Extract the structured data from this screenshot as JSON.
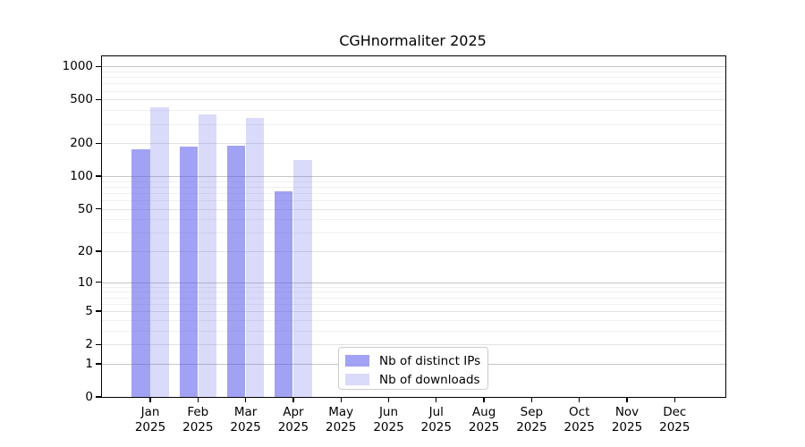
{
  "figure": {
    "background": "#ffffff"
  },
  "chart_data": {
    "type": "bar",
    "title": "CGHnormaliter 2025",
    "categories": [
      "Jan",
      "Feb",
      "Mar",
      "Apr",
      "May",
      "Jun",
      "Jul",
      "Aug",
      "Sep",
      "Oct",
      "Nov",
      "Dec"
    ],
    "x_tick_year": "2025",
    "series": [
      {
        "name": "Nb of distinct IPs",
        "color": "rgba(85,85,235,0.55)",
        "values": [
          176,
          187,
          191,
          73,
          null,
          null,
          null,
          null,
          null,
          null,
          null,
          null
        ]
      },
      {
        "name": "Nb of downloads",
        "color": "rgba(85,85,235,0.22)",
        "values": [
          423,
          368,
          341,
          141,
          null,
          null,
          null,
          null,
          null,
          null,
          null,
          null
        ]
      }
    ],
    "y_axis": {
      "scale": "log1p",
      "ticks": [
        0,
        1,
        2,
        5,
        10,
        20,
        50,
        100,
        200,
        500,
        1000
      ],
      "ylim": [
        0,
        1236
      ]
    },
    "x_axis": {
      "tick_count": 12
    },
    "legend": {
      "position": "lower-center",
      "entries": [
        "Nb of distinct IPs",
        "Nb of downloads"
      ]
    },
    "grid": "horizontal-only"
  }
}
